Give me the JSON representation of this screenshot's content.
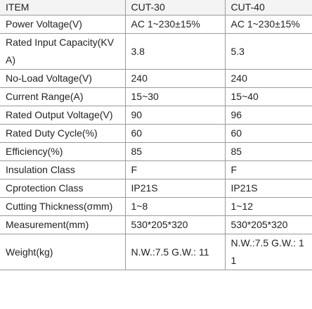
{
  "table": {
    "header": [
      "ITEM",
      "CUT-30",
      "CUT-40"
    ],
    "rows": [
      [
        "Power Voltage(V)",
        "AC 1~230±15%",
        "AC 1~230±15%"
      ],
      [
        "Rated Input Capacity(KVA)",
        "3.8",
        "5.3"
      ],
      [
        "No-Load Voltage(V)",
        "240",
        "240"
      ],
      [
        "Current Range(A)",
        "15~30",
        "15~40"
      ],
      [
        "Rated Output Voltage(V)",
        "90",
        "96"
      ],
      [
        "Rated Duty Cycle(%)",
        "60",
        "60"
      ],
      [
        "Efficiency(%)",
        "85",
        "85"
      ],
      [
        "Insulation Class",
        "F",
        "F"
      ],
      [
        "Cprotection Class",
        "IP21S",
        "IP21S"
      ],
      [
        "Cutting Thickness(σmm)",
        "1~8",
        "1~12"
      ],
      [
        "Measurement(mm)",
        "530*205*320",
        "530*205*320"
      ],
      [
        "Weight(kg)",
        "N.W.:7.5 G.W.: 11",
        "N.W.:7.5 G.W.: 11"
      ]
    ]
  }
}
